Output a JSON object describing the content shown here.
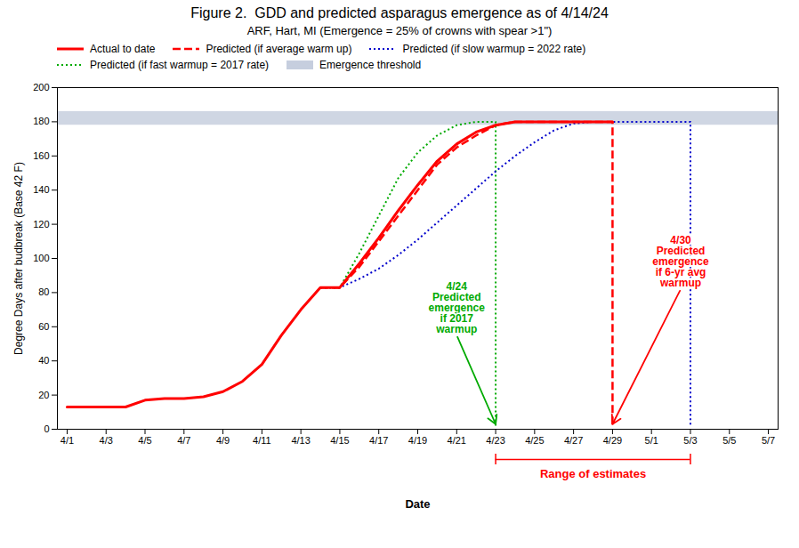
{
  "chart_data": {
    "type": "line",
    "title": "Figure 2.  GDD and predicted asparagus emergence as of 4/14/24",
    "subtitle": "ARF, Hart, MI (Emergence = 25% of crowns with spear >1\")",
    "x_label": "Date",
    "y_label": "Degree Days after budbreak (Base 42 F)",
    "xlim": [
      -0.5,
      36.5
    ],
    "xticks": [
      {
        "value": 0,
        "label": "4/1"
      },
      {
        "value": 2,
        "label": "4/3"
      },
      {
        "value": 4,
        "label": "4/5"
      },
      {
        "value": 6,
        "label": "4/7"
      },
      {
        "value": 8,
        "label": "4/9"
      },
      {
        "value": 10,
        "label": "4/11"
      },
      {
        "value": 12,
        "label": "4/13"
      },
      {
        "value": 14,
        "label": "4/15"
      },
      {
        "value": 16,
        "label": "4/17"
      },
      {
        "value": 18,
        "label": "4/19"
      },
      {
        "value": 20,
        "label": "4/21"
      },
      {
        "value": 22,
        "label": "4/23"
      },
      {
        "value": 24,
        "label": "4/25"
      },
      {
        "value": 26,
        "label": "4/27"
      },
      {
        "value": 28,
        "label": "4/29"
      },
      {
        "value": 30,
        "label": "5/1"
      },
      {
        "value": 32,
        "label": "5/3"
      },
      {
        "value": 34,
        "label": "5/5"
      },
      {
        "value": 36,
        "label": "5/7"
      }
    ],
    "ylim": [
      0,
      200
    ],
    "yticks": [
      0,
      20,
      40,
      60,
      80,
      100,
      120,
      140,
      160,
      180,
      200
    ],
    "grid": false,
    "legend": "upper left",
    "series": [
      {
        "name": "Actual to date",
        "color": "#ff0000",
        "line_style": "solid",
        "x": [
          0,
          1,
          2,
          3,
          4,
          5,
          6,
          7,
          8,
          9,
          10,
          11,
          12,
          13,
          14,
          15,
          16,
          17,
          18,
          19,
          20,
          21,
          22,
          23,
          24,
          25,
          26,
          27,
          28
        ],
        "values": [
          13,
          13,
          13,
          13,
          17,
          18,
          18,
          19,
          22,
          28,
          38,
          55,
          70,
          83,
          83,
          97,
          112,
          128,
          143,
          157,
          167,
          174,
          178,
          180,
          180,
          180,
          180,
          180,
          180
        ]
      },
      {
        "name": "Predicted (if average warm up)",
        "color": "#ff0000",
        "line_style": "dashed",
        "x": [
          13,
          14,
          15,
          16,
          17,
          18,
          19,
          20,
          21,
          22,
          23,
          24,
          25,
          26,
          27,
          28,
          28,
          28
        ],
        "values": [
          83,
          83,
          95,
          110,
          125,
          140,
          155,
          165,
          172,
          178,
          180,
          180,
          180,
          180,
          180,
          180,
          180,
          2
        ]
      },
      {
        "name": "Predicted (if slow warmup = 2022 rate)",
        "color": "#0000cc",
        "line_style": "dotted",
        "x": [
          13,
          14,
          15,
          16,
          17,
          18,
          19,
          20,
          21,
          22,
          23,
          24,
          25,
          26,
          27,
          28,
          29,
          30,
          31,
          32,
          32,
          32
        ],
        "values": [
          83,
          83,
          88,
          94,
          102,
          111,
          121,
          131,
          141,
          151,
          160,
          168,
          175,
          179,
          180,
          180,
          180,
          180,
          180,
          180,
          180,
          2
        ]
      },
      {
        "name": "Predicted (if fast warmup = 2017 rate)",
        "color": "#00aa00",
        "line_style": "dotted",
        "x": [
          13,
          14,
          15,
          16,
          17,
          18,
          19,
          20,
          21,
          22,
          22,
          22
        ],
        "values": [
          83,
          83,
          103,
          125,
          147,
          162,
          172,
          178,
          180,
          180,
          180,
          2
        ]
      }
    ],
    "bands": [
      {
        "name": "Emergence threshold",
        "y1": 178,
        "y2": 186,
        "color": "#a8b4cc"
      }
    ],
    "annotations": [
      {
        "text": "4/24\nPredicted\nemergence\nif 2017\nwarmup",
        "x": 22,
        "y": 3,
        "text_x": 20,
        "text_y": 55,
        "color": "#00aa00"
      },
      {
        "text": "4/30\nPredicted\nemergence\nif 6-yr avg\nwarmup",
        "x": 28,
        "y": 3,
        "text_x": 31.5,
        "text_y": 82,
        "color": "#ff0000"
      }
    ],
    "range_bracket": {
      "text": "Range of estimates",
      "x1": 22,
      "x2": 32,
      "color": "red"
    }
  }
}
